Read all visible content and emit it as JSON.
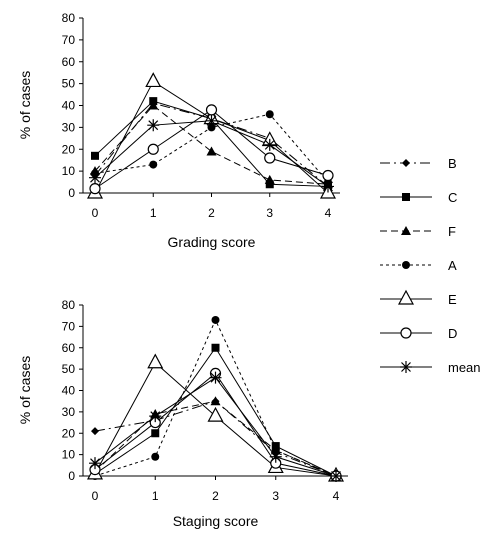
{
  "chart_data": [
    {
      "type": "line",
      "xlabel": "Grading score",
      "ylabel": "% of cases",
      "x": [
        0,
        1,
        2,
        3,
        4
      ],
      "xlim": [
        0,
        4
      ],
      "ylim": [
        0,
        80
      ],
      "yticks": [
        0,
        10,
        20,
        30,
        40,
        50,
        60,
        70,
        80
      ],
      "grid": false,
      "series": [
        {
          "name": "B",
          "marker": "diamond",
          "dash": "10,4,2,4",
          "values": [
            8,
            41,
            34,
            25,
            3
          ]
        },
        {
          "name": "C",
          "marker": "square",
          "dash": "",
          "values": [
            17,
            42,
            34,
            4,
            3
          ]
        },
        {
          "name": "F",
          "marker": "triangle",
          "dash": "7,4",
          "values": [
            10,
            40,
            19,
            6,
            4
          ]
        },
        {
          "name": "A",
          "marker": "circle",
          "dash": "3,3",
          "values": [
            9,
            13,
            30,
            36,
            5
          ]
        },
        {
          "name": "E",
          "marker": "open-triangle",
          "dash": "",
          "values": [
            0,
            51,
            34,
            24,
            0
          ]
        },
        {
          "name": "D",
          "marker": "open-circle",
          "dash": "",
          "values": [
            2,
            20,
            38,
            16,
            8
          ]
        },
        {
          "name": "mean",
          "marker": "star",
          "dash": "",
          "values": [
            7,
            31,
            33,
            22,
            3
          ]
        }
      ]
    },
    {
      "type": "line",
      "xlabel": "Staging score",
      "ylabel": "% of cases",
      "x": [
        0,
        1,
        2,
        3,
        4
      ],
      "xlim": [
        0,
        4
      ],
      "ylim": [
        0,
        80
      ],
      "yticks": [
        0,
        10,
        20,
        30,
        40,
        50,
        60,
        70,
        80
      ],
      "grid": false,
      "series": [
        {
          "name": "B",
          "marker": "diamond",
          "dash": "10,4,2,4",
          "values": [
            21,
            26,
            35,
            11,
            0
          ]
        },
        {
          "name": "C",
          "marker": "square",
          "dash": "",
          "values": [
            1,
            20,
            60,
            14,
            0
          ]
        },
        {
          "name": "F",
          "marker": "triangle",
          "dash": "7,4",
          "values": [
            2,
            29,
            35,
            12,
            0
          ]
        },
        {
          "name": "A",
          "marker": "circle",
          "dash": "3,3",
          "values": [
            0,
            9,
            73,
            12,
            0
          ]
        },
        {
          "name": "E",
          "marker": "open-triangle",
          "dash": "",
          "values": [
            1,
            53,
            28,
            4,
            0
          ]
        },
        {
          "name": "D",
          "marker": "open-circle",
          "dash": "",
          "values": [
            3,
            25,
            48,
            6,
            0
          ]
        },
        {
          "name": "mean",
          "marker": "star",
          "dash": "",
          "values": [
            6,
            28,
            46,
            9,
            0
          ]
        }
      ]
    }
  ],
  "legend": {
    "placement": "right",
    "items": [
      "B",
      "C",
      "F",
      "A",
      "E",
      "D",
      "mean"
    ]
  }
}
